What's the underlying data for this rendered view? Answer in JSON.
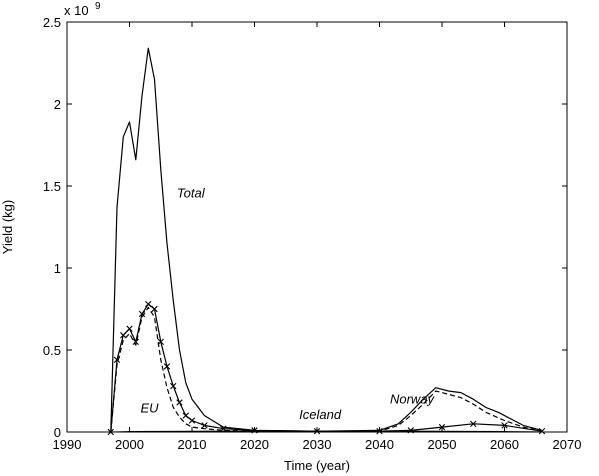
{
  "chart_data": {
    "type": "line",
    "title": "",
    "xlabel": "Time (year)",
    "ylabel": "Yield (kg)",
    "y_multiplier_label": "x 10",
    "y_multiplier_exponent": "9",
    "xlim": [
      1990,
      2070
    ],
    "ylim": [
      0,
      2.5
    ],
    "xticks": [
      1990,
      2000,
      2010,
      2020,
      2030,
      2040,
      2050,
      2060,
      2070
    ],
    "yticks": [
      0,
      0.5,
      1,
      1.5,
      2,
      2.5
    ],
    "grid": false,
    "legend": "none",
    "annotations": [
      {
        "text": "Total",
        "x": 2009.8,
        "y": 1.43
      },
      {
        "text": "EU",
        "x": 2003.2,
        "y": 0.12
      },
      {
        "text": "Iceland",
        "x": 2030.5,
        "y": 0.08
      },
      {
        "text": "Norway",
        "x": 2045.2,
        "y": 0.175
      }
    ],
    "series": [
      {
        "style": "solid",
        "x": [
          1997,
          1998,
          1999,
          2000,
          2001,
          2002,
          2003,
          2004,
          2005,
          2006,
          2007,
          2008,
          2009,
          2010,
          2012,
          2015,
          2020,
          2030,
          2040,
          2043,
          2045,
          2047,
          2049,
          2051,
          2053,
          2055,
          2057,
          2059,
          2061,
          2063,
          2066
        ],
        "y": [
          0,
          1.37,
          1.8,
          1.89,
          1.66,
          2.05,
          2.34,
          2.15,
          1.6,
          1.15,
          0.8,
          0.5,
          0.3,
          0.2,
          0.1,
          0.03,
          0.01,
          0.005,
          0.01,
          0.05,
          0.12,
          0.2,
          0.27,
          0.25,
          0.24,
          0.2,
          0.15,
          0.12,
          0.08,
          0.04,
          0.01
        ]
      },
      {
        "style": "markers-x",
        "x": [
          1997,
          1998,
          1999,
          2000,
          2001,
          2002,
          2003,
          2004,
          2005,
          2006,
          2007,
          2008,
          2009,
          2010,
          2012,
          2015,
          2020,
          2030,
          2040,
          2045,
          2050,
          2055,
          2060,
          2066
        ],
        "y": [
          0,
          0.44,
          0.59,
          0.63,
          0.55,
          0.72,
          0.78,
          0.75,
          0.55,
          0.4,
          0.28,
          0.18,
          0.1,
          0.07,
          0.04,
          0.02,
          0.01,
          0.005,
          0.005,
          0.01,
          0.03,
          0.05,
          0.04,
          0.005
        ]
      },
      {
        "style": "dashed",
        "x": [
          1997,
          1998,
          1999,
          2000,
          2001,
          2002,
          2003,
          2004,
          2005,
          2006,
          2007,
          2008,
          2009,
          2010,
          2012,
          2015,
          2020,
          2030,
          2040,
          2043,
          2045,
          2047,
          2049,
          2051,
          2053,
          2055,
          2057,
          2060,
          2063,
          2066
        ],
        "y": [
          0,
          0.41,
          0.56,
          0.6,
          0.53,
          0.7,
          0.76,
          0.7,
          0.44,
          0.27,
          0.15,
          0.09,
          0.05,
          0.03,
          0.02,
          0.01,
          0.005,
          0.002,
          0.005,
          0.04,
          0.1,
          0.17,
          0.25,
          0.23,
          0.21,
          0.17,
          0.12,
          0.07,
          0.03,
          0.005
        ]
      },
      {
        "style": "solid-thin",
        "x": [
          1997,
          2000,
          2005,
          2010,
          2020,
          2030,
          2040,
          2050,
          2060,
          2066
        ],
        "y": [
          0,
          0.003,
          0.004,
          0.005,
          0.006,
          0.007,
          0.006,
          0.005,
          0.003,
          0.001
        ]
      }
    ]
  }
}
